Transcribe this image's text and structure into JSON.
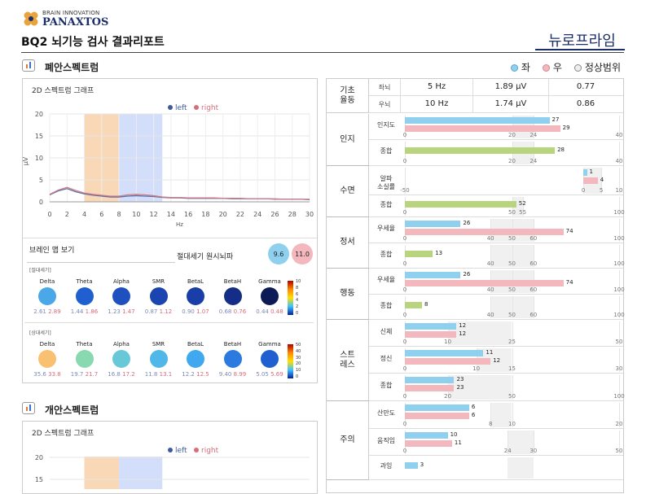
{
  "header": {
    "brand_top": "BRAIN INNOVATION",
    "brand_main": "PANAXTOS",
    "title": "BQ2 뇌기능 검사 결과리포트",
    "product": "뉴로프라임"
  },
  "legend": {
    "left_label": "좌",
    "right_label": "우",
    "normal_label": "정상범위",
    "left_color": "#8fd0ef",
    "right_color": "#f2b8be"
  },
  "section1": {
    "title": "폐안스펙트럼",
    "graph_title": "2D 스펙트럼 그래프",
    "graph_legend": {
      "left": "left",
      "right": "right"
    },
    "ylabel": "μV",
    "xlabel": "Hz",
    "brainmap": {
      "title": "브레인 맵 보기",
      "abs_label": "절대세기 원시뇌파",
      "abs_left": "9.6",
      "abs_right": "11.0",
      "abs_group": "[절대세기]",
      "rel_group": "[상대세기]",
      "bands": [
        "Delta",
        "Theta",
        "Alpha",
        "SMR",
        "BetaL",
        "BetaH",
        "Gamma"
      ],
      "abs_values": [
        {
          "l": "2.61",
          "r": "2.89"
        },
        {
          "l": "1.44",
          "r": "1.86"
        },
        {
          "l": "1.23",
          "r": "1.47"
        },
        {
          "l": "0.87",
          "r": "1.12"
        },
        {
          "l": "0.90",
          "r": "1.07"
        },
        {
          "l": "0.68",
          "r": "0.76"
        },
        {
          "l": "0.44",
          "r": "0.48"
        }
      ],
      "rel_values": [
        {
          "l": "35.6",
          "r": "33.8"
        },
        {
          "l": "19.7",
          "r": "21.7"
        },
        {
          "l": "16.8",
          "r": "17.2"
        },
        {
          "l": "11.8",
          "r": "13.1"
        },
        {
          "l": "12.2",
          "r": "12.5"
        },
        {
          "l": "9.40",
          "r": "8.99"
        },
        {
          "l": "5.05",
          "r": "5.69"
        }
      ],
      "abs_scale": [
        "10",
        "8",
        "6",
        "4",
        "2",
        "0"
      ],
      "rel_scale": [
        "50",
        "40",
        "30",
        "20",
        "10",
        "0"
      ]
    }
  },
  "section2": {
    "title": "개안스펙트럼",
    "graph_title": "2D 스펙트럼 그래프",
    "graph_legend": {
      "left": "left",
      "right": "right"
    },
    "yticks": [
      "20",
      "15"
    ]
  },
  "chart_data": [
    {
      "type": "line",
      "title": "2D 스펙트럼 그래프",
      "xlabel": "Hz",
      "ylabel": "μV",
      "xlim": [
        0,
        30
      ],
      "ylim": [
        0,
        20
      ],
      "x": [
        0,
        1,
        2,
        3,
        4,
        5,
        6,
        7,
        8,
        9,
        10,
        11,
        12,
        13,
        14,
        15,
        16,
        17,
        18,
        19,
        20,
        21,
        22,
        23,
        24,
        25,
        26,
        27,
        28,
        29,
        30
      ],
      "series": [
        {
          "name": "left",
          "values": [
            1.6,
            2.5,
            3.0,
            2.3,
            1.8,
            1.5,
            1.3,
            1.1,
            1.1,
            1.3,
            1.4,
            1.3,
            1.2,
            1.0,
            0.9,
            0.9,
            0.8,
            0.8,
            0.8,
            0.8,
            0.8,
            0.7,
            0.7,
            0.7,
            0.7,
            0.7,
            0.6,
            0.6,
            0.6,
            0.6,
            0.5
          ]
        },
        {
          "name": "right",
          "values": [
            1.7,
            2.7,
            3.3,
            2.6,
            2.0,
            1.7,
            1.5,
            1.3,
            1.3,
            1.6,
            1.7,
            1.6,
            1.4,
            1.1,
            1.0,
            1.0,
            0.9,
            0.9,
            0.9,
            0.9,
            0.8,
            0.8,
            0.8,
            0.7,
            0.7,
            0.7,
            0.7,
            0.6,
            0.6,
            0.6,
            0.6
          ]
        }
      ],
      "xticks": [
        "0",
        "2",
        "4",
        "6",
        "8",
        "10",
        "12",
        "14",
        "16",
        "18",
        "20",
        "22",
        "24",
        "26",
        "28",
        "30"
      ],
      "yticks": [
        "0",
        "5",
        "10",
        "15",
        "20"
      ]
    },
    {
      "type": "bar",
      "categories": [
        "인지도",
        "종합",
        "알파 소실률",
        "종합",
        "우세율",
        "종합",
        "우세율",
        "종합",
        "신체",
        "정신",
        "종합",
        "산만도",
        "움직임",
        "과잉"
      ],
      "series": [
        {
          "name": "좌",
          "values": [
            27,
            28,
            1,
            52,
            26,
            13,
            26,
            8,
            12,
            11,
            23,
            6,
            10,
            3
          ]
        },
        {
          "name": "우",
          "values": [
            29,
            null,
            4,
            null,
            74,
            null,
            74,
            null,
            12,
            12,
            23,
            6,
            11,
            null
          ]
        }
      ]
    }
  ],
  "table": {
    "basic": {
      "label": "기초\n율동",
      "rows": [
        {
          "side": "좌뇌",
          "hz": "5  Hz",
          "uv": "1.89  μV",
          "ratio": "0.77"
        },
        {
          "side": "우뇌",
          "hz": "10  Hz",
          "uv": "1.74  μV",
          "ratio": "0.86"
        }
      ]
    },
    "groups": [
      {
        "label": "인지",
        "rows": [
          {
            "name": "인지도",
            "left": 27,
            "right": 29,
            "lt": "27",
            "rt": "29",
            "max": 40,
            "ticks": [
              "0",
              "20",
              "24",
              "40"
            ],
            "tickv": [
              0,
              20,
              24,
              40
            ],
            "normal": [
              20,
              24
            ]
          },
          {
            "name": "종합",
            "left": 28,
            "right": null,
            "lt": "28",
            "rt": "",
            "max": 40,
            "ticks": [
              "0",
              "20",
              "24",
              "40"
            ],
            "tickv": [
              0,
              20,
              24,
              40
            ],
            "normal": [
              20,
              24
            ],
            "green": true
          }
        ]
      },
      {
        "label": "수면",
        "rows": [
          {
            "name": "알파\n소실률",
            "left": 1,
            "right": 4,
            "lt": "1",
            "rt": "4",
            "min": -50,
            "max": 10,
            "ticks": [
              "-50",
              "0",
              "5",
              "10"
            ],
            "tickv": [
              -50,
              0,
              5,
              10
            ],
            "normal": [
              0,
              5
            ]
          },
          {
            "name": "종합",
            "left": 52,
            "right": null,
            "lt": "52",
            "rt": "",
            "max": 100,
            "ticks": [
              "0",
              "50",
              "55",
              "100"
            ],
            "tickv": [
              0,
              50,
              55,
              100
            ],
            "normal": [
              50,
              55
            ],
            "green": true
          }
        ]
      },
      {
        "label": "정서",
        "rows": [
          {
            "name": "우세율",
            "left": 26,
            "right": 74,
            "lt": "26",
            "rt": "74",
            "max": 100,
            "ticks": [
              "0",
              "40",
              "50",
              "60",
              "100"
            ],
            "tickv": [
              0,
              40,
              50,
              60,
              100
            ],
            "normal": [
              40,
              60
            ]
          },
          {
            "name": "종합",
            "left": 13,
            "right": null,
            "lt": "13",
            "rt": "",
            "max": 100,
            "ticks": [
              "0",
              "40",
              "50",
              "60",
              "100"
            ],
            "tickv": [
              0,
              40,
              50,
              60,
              100
            ],
            "normal": [
              40,
              60
            ],
            "green": true
          }
        ]
      },
      {
        "label": "행동",
        "rows": [
          {
            "name": "우세율",
            "left": 26,
            "right": 74,
            "lt": "26",
            "rt": "74",
            "max": 100,
            "ticks": [
              "0",
              "40",
              "50",
              "60",
              "100"
            ],
            "tickv": [
              0,
              40,
              50,
              60,
              100
            ],
            "normal": [
              40,
              60
            ]
          },
          {
            "name": "종합",
            "left": 8,
            "right": null,
            "lt": "8",
            "rt": "",
            "max": 100,
            "ticks": [
              "0",
              "40",
              "50",
              "60",
              "100"
            ],
            "tickv": [
              0,
              40,
              50,
              60,
              100
            ],
            "normal": [
              40,
              60
            ],
            "green": true
          }
        ]
      },
      {
        "label": "스트\n레스",
        "rows": [
          {
            "name": "신체",
            "left": 12,
            "right": 12,
            "lt": "12",
            "rt": "12",
            "max": 50,
            "ticks": [
              "0",
              "10",
              "25",
              "50"
            ],
            "tickv": [
              0,
              10,
              25,
              50
            ],
            "normal": [
              10,
              25
            ]
          },
          {
            "name": "정신",
            "left": 11,
            "right": 12,
            "lt": "11",
            "rt": "12",
            "max": 30,
            "ticks": [
              "0",
              "10",
              "15",
              "30"
            ],
            "tickv": [
              0,
              10,
              15,
              30
            ],
            "normal": [
              10,
              15
            ]
          },
          {
            "name": "종합",
            "left": 23,
            "right": 23,
            "lt": "23",
            "rt": "23",
            "max": 100,
            "ticks": [
              "0",
              "20",
              "50",
              "100"
            ],
            "tickv": [
              0,
              20,
              50,
              100
            ],
            "normal": [
              20,
              50
            ]
          }
        ]
      },
      {
        "label": "주의",
        "rows": [
          {
            "name": "산만도",
            "left": 6,
            "right": 6,
            "lt": "6",
            "rt": "6",
            "max": 20,
            "ticks": [
              "0",
              "8",
              "10",
              "20"
            ],
            "tickv": [
              0,
              8,
              10,
              20
            ],
            "normal": [
              8,
              10
            ]
          },
          {
            "name": "움직임",
            "left": 10,
            "right": 11,
            "lt": "10",
            "rt": "11",
            "max": 50,
            "ticks": [
              "0",
              "24",
              "30",
              "50"
            ],
            "tickv": [
              0,
              24,
              30,
              50
            ],
            "normal": [
              24,
              30
            ]
          },
          {
            "name": "과잉",
            "left": 3,
            "right": null,
            "lt": "3",
            "rt": "",
            "max": 50,
            "ticks": [],
            "tickv": [],
            "normal": [
              24,
              30
            ]
          }
        ]
      }
    ]
  }
}
